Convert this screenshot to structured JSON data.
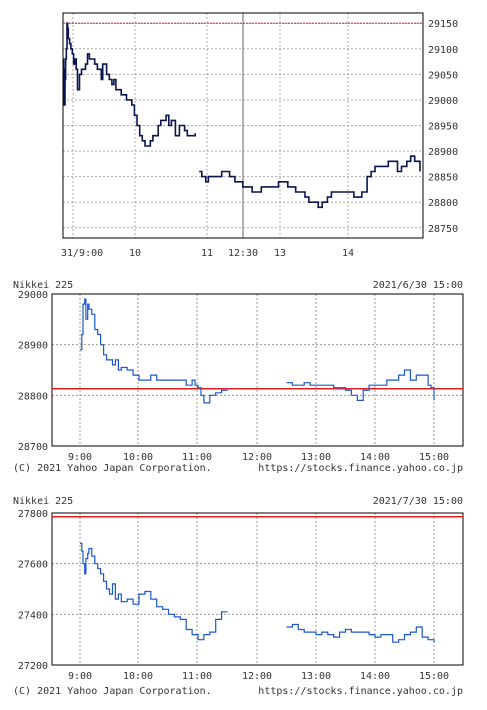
{
  "chart_data": [
    {
      "type": "line",
      "title": "",
      "x_ticks": [
        "31/9:00",
        "10",
        "11",
        "12:30",
        "13",
        "14"
      ],
      "y_ticks": [
        29150,
        29100,
        29050,
        29000,
        28950,
        28900,
        28850,
        28800,
        28750
      ],
      "ylim": [
        28730,
        29170
      ],
      "reference_line": 29150,
      "grid": true,
      "series": [
        {
          "color": "#0a1450",
          "segments": [
            {
              "x": [
                0,
                0.05,
                0.1,
                0.15,
                0.2,
                0.25,
                0.3,
                0.35,
                0.4,
                0.5,
                0.6,
                0.7,
                0.8,
                0.9,
                1.0,
                1.1,
                1.25,
                1.4,
                1.55,
                1.7,
                1.85,
                2.0,
                2.2,
                2.4,
                2.6,
                2.75,
                2.9,
                3.0,
                3.1,
                3.3,
                3.5,
                3.7,
                3.85,
                4.0,
                4.2,
                4.4,
                4.6,
                4.8,
                5.0,
                5.2,
                5.4,
                5.6,
                5.8,
                6.0,
                6.2,
                6.4,
                6.6,
                6.8,
                7.0,
                7.2,
                7.4,
                7.6,
                7.8,
                8.0,
                8.2,
                8.5,
                8.8,
                9.0,
                9.2,
                9.4,
                9.6,
                9.8,
                10.0
              ],
              "y": [
                29080,
                29060,
                28990,
                29040,
                29080,
                29100,
                29150,
                29140,
                29120,
                29110,
                29100,
                29090,
                29070,
                29080,
                29060,
                29020,
                29050,
                29060,
                29060,
                29070,
                29090,
                29080,
                29080,
                29070,
                29060,
                29060,
                29040,
                29070,
                29070,
                29050,
                29040,
                29030,
                29040,
                29020,
                29020,
                29010,
                29010,
                29000,
                29000,
                28990,
                28970,
                28950,
                28930,
                28920,
                28910,
                28910,
                28920,
                28930,
                28930,
                28950,
                28960,
                28960,
                28970,
                28950,
                28960,
                28930,
                28950,
                28950,
                28940,
                28930,
                28930,
                28930,
                28935
              ]
            },
            {
              "x": [
                10.3,
                10.5,
                10.8,
                11.0,
                11.3,
                11.6,
                12.0,
                12.3,
                12.6,
                13.0,
                13.3,
                13.6,
                14.0,
                14.3,
                14.6,
                15.0,
                15.3,
                15.6,
                16.0,
                16.3,
                16.6,
                17.0,
                17.3,
                17.6,
                18.0,
                18.3,
                18.6,
                19.0,
                19.3,
                19.6,
                20.0,
                20.3,
                20.6,
                21.0,
                21.3,
                21.6,
                22.0,
                22.3,
                22.6,
                23.0,
                23.3,
                23.6,
                24.0,
                24.3,
                24.6,
                25.0,
                25.3,
                25.6,
                26.0,
                26.3,
                26.6,
                27.0
              ],
              "y": [
                28860,
                28850,
                28840,
                28850,
                28850,
                28850,
                28860,
                28860,
                28850,
                28840,
                28840,
                28830,
                28830,
                28820,
                28820,
                28830,
                28830,
                28830,
                28830,
                28840,
                28840,
                28830,
                28830,
                28820,
                28820,
                28810,
                28800,
                28800,
                28790,
                28800,
                28810,
                28820,
                28820,
                28820,
                28820,
                28820,
                28810,
                28810,
                28820,
                28850,
                28860,
                28870,
                28870,
                28870,
                28880,
                28880,
                28860,
                28870,
                28880,
                28890,
                28880,
                28860
              ]
            }
          ]
        }
      ]
    },
    {
      "type": "line",
      "header_left": "Nikkei 225",
      "header_right": "2021/6/30 15:00",
      "footer_left": "(C) 2021 Yahoo Japan Corporation.",
      "footer_right": "https://stocks.finance.yahoo.co.jp",
      "x_ticks": [
        "9:00",
        "10:00",
        "11:00",
        "12:00",
        "13:00",
        "14:00",
        "15:00"
      ],
      "y_ticks": [
        29000,
        28900,
        28800,
        28700
      ],
      "ylim": [
        28700,
        29000
      ],
      "reference_line": 28813,
      "grid": true,
      "series": [
        {
          "color": "#1c57d0",
          "segments": [
            {
              "x": [
                9.0,
                9.03,
                9.05,
                9.08,
                9.1,
                9.13,
                9.15,
                9.2,
                9.25,
                9.3,
                9.35,
                9.4,
                9.45,
                9.5,
                9.55,
                9.6,
                9.65,
                9.7,
                9.8,
                9.9,
                10.0,
                10.1,
                10.2,
                10.3,
                10.4,
                10.5,
                10.6,
                10.7,
                10.8,
                10.9,
                10.95,
                11.0,
                11.05,
                11.1,
                11.15,
                11.2,
                11.3,
                11.4,
                11.5
              ],
              "y": [
                28890,
                28920,
                28980,
                28990,
                28950,
                28980,
                28970,
                28960,
                28930,
                28920,
                28900,
                28880,
                28870,
                28870,
                28860,
                28870,
                28850,
                28855,
                28850,
                28840,
                28830,
                28830,
                28840,
                28830,
                28830,
                28830,
                28830,
                28830,
                28820,
                28830,
                28820,
                28815,
                28800,
                28785,
                28785,
                28800,
                28805,
                28810,
                28810
              ]
            },
            {
              "x": [
                12.5,
                12.6,
                12.7,
                12.8,
                12.9,
                13.0,
                13.1,
                13.2,
                13.3,
                13.4,
                13.5,
                13.6,
                13.7,
                13.8,
                13.9,
                14.0,
                14.1,
                14.2,
                14.3,
                14.4,
                14.5,
                14.6,
                14.7,
                14.8,
                14.9,
                14.95,
                15.0
              ],
              "y": [
                28825,
                28820,
                28820,
                28825,
                28820,
                28820,
                28820,
                28820,
                28815,
                28815,
                28810,
                28800,
                28790,
                28810,
                28820,
                28820,
                28820,
                28830,
                28830,
                28840,
                28850,
                28830,
                28840,
                28840,
                28820,
                28815,
                28790
              ]
            }
          ]
        }
      ]
    },
    {
      "type": "line",
      "header_left": "Nikkei 225",
      "header_right": "2021/7/30 15:00",
      "footer_left": "(C) 2021 Yahoo Japan Corporation.",
      "footer_right": "https://stocks.finance.yahoo.co.jp",
      "x_ticks": [
        "9:00",
        "10:00",
        "11:00",
        "12:00",
        "13:00",
        "14:00",
        "15:00"
      ],
      "y_ticks": [
        27800,
        27600,
        27400,
        27200
      ],
      "ylim": [
        27200,
        27800
      ],
      "reference_line": 27785,
      "grid": true,
      "series": [
        {
          "color": "#1c57d0",
          "segments": [
            {
              "x": [
                9.0,
                9.03,
                9.05,
                9.08,
                9.1,
                9.13,
                9.15,
                9.2,
                9.25,
                9.3,
                9.35,
                9.4,
                9.45,
                9.5,
                9.55,
                9.6,
                9.65,
                9.7,
                9.8,
                9.9,
                10.0,
                10.1,
                10.2,
                10.3,
                10.4,
                10.5,
                10.6,
                10.7,
                10.8,
                10.9,
                11.0,
                11.1,
                11.2,
                11.3,
                11.4,
                11.5
              ],
              "y": [
                27680,
                27650,
                27600,
                27560,
                27620,
                27640,
                27660,
                27630,
                27600,
                27580,
                27560,
                27530,
                27500,
                27480,
                27520,
                27460,
                27480,
                27450,
                27460,
                27440,
                27480,
                27490,
                27460,
                27430,
                27420,
                27400,
                27390,
                27380,
                27340,
                27320,
                27300,
                27320,
                27330,
                27380,
                27410,
                27410
              ]
            },
            {
              "x": [
                12.5,
                12.6,
                12.7,
                12.8,
                12.9,
                13.0,
                13.1,
                13.2,
                13.3,
                13.4,
                13.5,
                13.6,
                13.7,
                13.8,
                13.9,
                14.0,
                14.1,
                14.2,
                14.3,
                14.4,
                14.5,
                14.6,
                14.7,
                14.8,
                14.9,
                15.0
              ],
              "y": [
                27350,
                27360,
                27340,
                27330,
                27330,
                27320,
                27330,
                27320,
                27310,
                27330,
                27340,
                27330,
                27330,
                27330,
                27320,
                27310,
                27320,
                27320,
                27290,
                27300,
                27320,
                27330,
                27350,
                27310,
                27300,
                27290
              ]
            }
          ]
        }
      ]
    }
  ]
}
